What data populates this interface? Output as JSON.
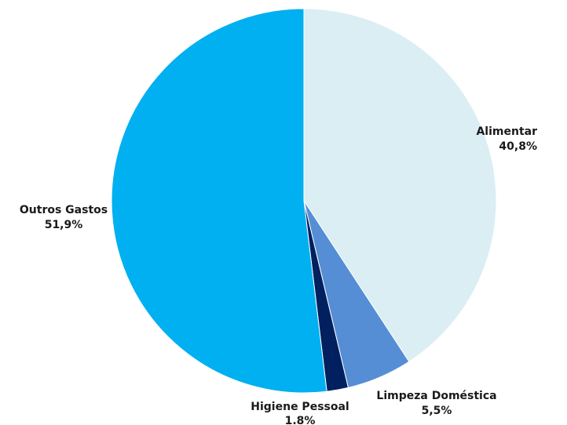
{
  "chart_data": {
    "type": "pie",
    "title": "",
    "start_angle_deg": 0,
    "direction": "clockwise",
    "slices": [
      {
        "label": "Alimentar",
        "value_label": "40,8%",
        "value": 40.8,
        "color": "#daeef3"
      },
      {
        "label": "Limpeza Doméstica",
        "value_label": "5,5%",
        "value": 5.5,
        "color": "#558ed5"
      },
      {
        "label": "Higiene Pessoal",
        "value_label": "1.8%",
        "value": 1.8,
        "color": "#002060"
      },
      {
        "label": "Outros Gastos",
        "value_label": "51,9%",
        "value": 51.9,
        "color": "#00b0f0"
      }
    ]
  }
}
